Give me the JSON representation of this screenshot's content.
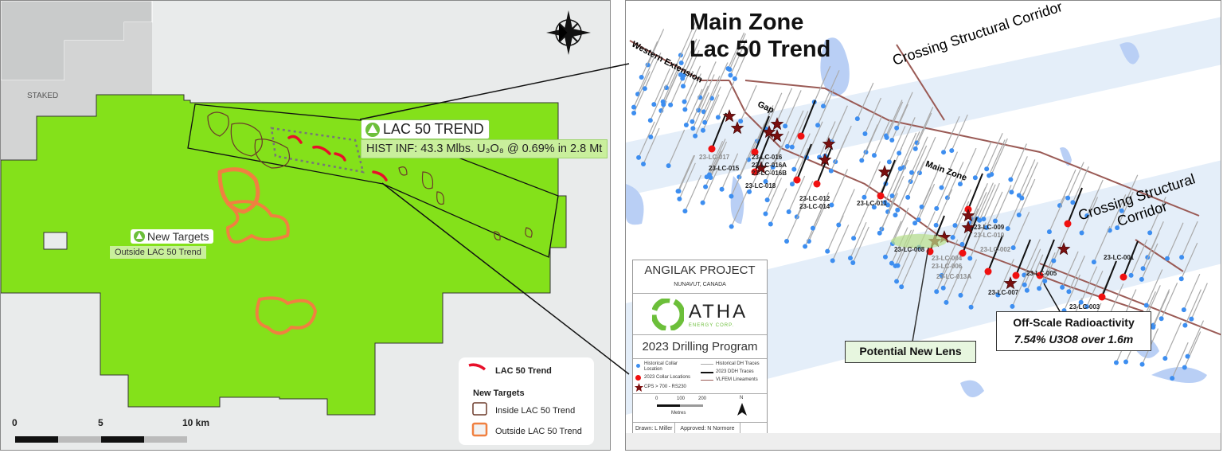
{
  "left_map": {
    "staked_label": "STAKED",
    "callout_title": "LAC 50 TREND",
    "callout_detail": "HIST INF: 43.3 Mlbs. U₃O₈ @ 0.69% in 2.8 Mt",
    "new_targets_title": "New Targets",
    "new_targets_sub": "Outside LAC 50 Trend",
    "scale": {
      "ticks": [
        "0",
        "5",
        "10 km"
      ]
    },
    "legend": {
      "trend": "LAC 50 Trend",
      "heading": "New Targets",
      "inside": "Inside LAC 50 Trend",
      "outside": "Outside LAC 50 Trend"
    },
    "colors": {
      "claim": "#84e11a",
      "trend": "#e8102a",
      "inside": "#6b3a2a",
      "outside": "#f08040"
    },
    "icons": [
      "atha-logo-icon",
      "compass-rose-icon"
    ]
  },
  "right_map": {
    "title_line1": "Main Zone",
    "title_line2": "Lac 50 Trend",
    "features": {
      "western_extension": "Western Extension",
      "gap": "Gap",
      "main_zone": "Main Zone",
      "corridor1": "Crossing Structural Corridor",
      "corridor2": "Crossing Structural Corridor"
    },
    "corridor_words": [
      [
        "Crossing",
        "Structural",
        "Corridor"
      ],
      [
        "Crossing Structural",
        "Corridor"
      ]
    ],
    "drill_labels": [
      "23-LC-017",
      "23-LC-015",
      "23-LC-016",
      "23-LC-016A",
      "23-LC-016B",
      "23-LC-018",
      "23-LC-012",
      "23-LC-014",
      "23-LC-011",
      "23-LC-009",
      "23-LC-010",
      "23-LC-008",
      "23-LC-004",
      "23-LC-006",
      "23-LC-002",
      "23-LC-013A",
      "23-LC-005",
      "23-LC-007",
      "23-LC-001",
      "23-LC-003"
    ],
    "potential_lens": "Potential New Lens",
    "radioactivity_title": "Off-Scale Radioactivity",
    "radioactivity_detail": "7.54% U3O8 over 1.6m",
    "title_block": {
      "project": "ANGILAK PROJECT",
      "location": "NUNAVUT, CANADA",
      "company": "ATHA",
      "company_sub": "ENERGY CORP.",
      "program": "2023 Drilling Program",
      "legend": [
        "Historical Collar Location",
        "2023 Collar Locations",
        "CPS > 700 - RS230",
        "Historical DH Traces",
        "2023 DDH Traces",
        "VLFEM Lineaments"
      ],
      "scale_ticks": [
        "0",
        "100",
        "200"
      ],
      "scale_unit": "Metres",
      "north": "N",
      "drawn": "Drawn: L Miller",
      "approved": "Approved: N Normore"
    }
  }
}
